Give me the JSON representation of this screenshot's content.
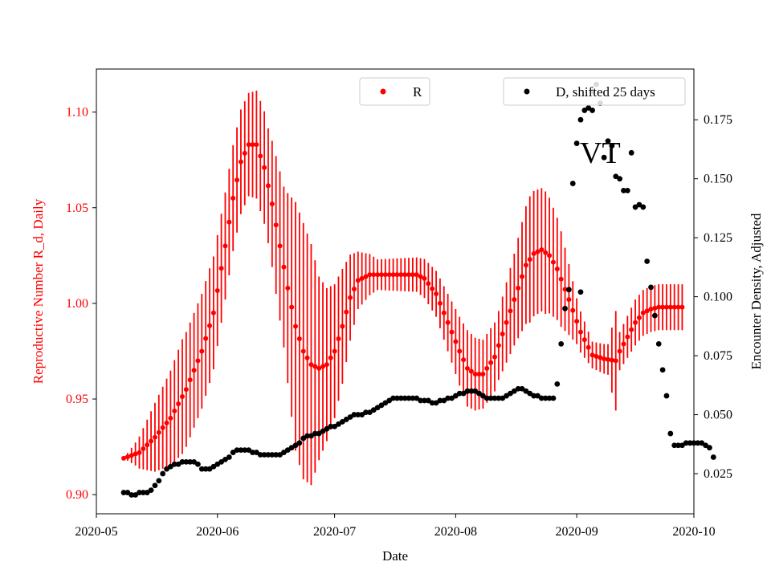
{
  "chart_data": {
    "type": "scatter",
    "xlabel": "Date",
    "ylabel_left": "Reproductive Number R_d, Daily",
    "ylabel_right": "Encounter Density, Adjusted",
    "annotation": "VT",
    "colors": {
      "r_series": "#ff0000",
      "d_series": "#000000"
    },
    "x_range": [
      "2020-05-01",
      "2020-10-01"
    ],
    "x_ticks": [
      "2020-05",
      "2020-06",
      "2020-07",
      "2020-08",
      "2020-09",
      "2020-10"
    ],
    "y_left_range": [
      0.89,
      1.1225
    ],
    "y_left_ticks": [
      "0.90",
      "0.95",
      "1.00",
      "1.05",
      "1.10"
    ],
    "y_right_range": [
      0.008,
      0.1965
    ],
    "y_right_ticks": [
      "0.025",
      "0.050",
      "0.075",
      "0.100",
      "0.125",
      "0.150",
      "0.175"
    ],
    "legend": [
      {
        "label": "R",
        "color": "#ff0000",
        "position": "top-center"
      },
      {
        "label": "D, shifted 25 days",
        "color": "#000000",
        "position": "top-right"
      }
    ],
    "r_start": "2020-05-08",
    "r_days": 144,
    "r_anchors": [
      [
        0,
        0.919
      ],
      [
        4,
        0.922
      ],
      [
        8,
        0.93
      ],
      [
        12,
        0.94
      ],
      [
        16,
        0.955
      ],
      [
        20,
        0.975
      ],
      [
        23,
        0.995
      ],
      [
        26,
        1.03
      ],
      [
        28,
        1.055
      ],
      [
        30,
        1.074
      ],
      [
        32,
        1.083
      ],
      [
        34,
        1.083
      ],
      [
        36,
        1.071
      ],
      [
        38,
        1.052
      ],
      [
        40,
        1.03
      ],
      [
        42,
        1.008
      ],
      [
        44,
        0.988
      ],
      [
        46,
        0.975
      ],
      [
        48,
        0.968
      ],
      [
        50,
        0.966
      ],
      [
        52,
        0.968
      ],
      [
        54,
        0.975
      ],
      [
        56,
        0.988
      ],
      [
        58,
        1.003
      ],
      [
        60,
        1.012
      ],
      [
        63,
        1.015
      ],
      [
        70,
        1.015
      ],
      [
        75,
        1.015
      ],
      [
        77,
        1.013
      ],
      [
        80,
        1.005
      ],
      [
        83,
        0.99
      ],
      [
        86,
        0.975
      ],
      [
        88,
        0.966
      ],
      [
        90,
        0.963
      ],
      [
        92,
        0.963
      ],
      [
        95,
        0.972
      ],
      [
        98,
        0.99
      ],
      [
        101,
        1.008
      ],
      [
        103,
        1.02
      ],
      [
        105,
        1.026
      ],
      [
        107,
        1.028
      ],
      [
        109,
        1.025
      ],
      [
        111,
        1.018
      ],
      [
        114,
        1.002
      ],
      [
        117,
        0.985
      ],
      [
        120,
        0.973
      ],
      [
        123,
        0.971
      ],
      [
        126,
        0.97
      ],
      [
        127,
        0.975
      ],
      [
        131,
        0.99
      ],
      [
        133,
        0.995
      ],
      [
        135,
        0.997
      ],
      [
        137,
        0.998
      ],
      [
        143,
        0.998
      ]
    ],
    "r_err_anchors": [
      [
        0,
        0.0
      ],
      [
        3,
        0.006
      ],
      [
        8,
        0.018
      ],
      [
        15,
        0.03
      ],
      [
        22,
        0.03
      ],
      [
        26,
        0.028
      ],
      [
        32,
        0.027
      ],
      [
        37,
        0.03
      ],
      [
        41,
        0.042
      ],
      [
        44,
        0.065
      ],
      [
        46,
        0.067
      ],
      [
        48,
        0.063
      ],
      [
        50,
        0.048
      ],
      [
        52,
        0.04
      ],
      [
        56,
        0.03
      ],
      [
        60,
        0.015
      ],
      [
        65,
        0.008
      ],
      [
        75,
        0.009
      ],
      [
        80,
        0.012
      ],
      [
        84,
        0.016
      ],
      [
        88,
        0.02
      ],
      [
        92,
        0.018
      ],
      [
        96,
        0.018
      ],
      [
        100,
        0.024
      ],
      [
        104,
        0.033
      ],
      [
        108,
        0.032
      ],
      [
        112,
        0.025
      ],
      [
        116,
        0.012
      ],
      [
        120,
        0.007
      ],
      [
        124,
        0.008
      ],
      [
        126,
        0.026
      ],
      [
        127,
        0.01
      ],
      [
        131,
        0.012
      ],
      [
        143,
        0.012
      ]
    ],
    "d_start": "2020-05-08",
    "d_series": [
      0.017,
      0.017,
      0.016,
      0.016,
      0.017,
      0.017,
      0.017,
      0.018,
      0.02,
      0.022,
      0.025,
      0.027,
      0.028,
      0.029,
      0.029,
      0.03,
      0.03,
      0.03,
      0.03,
      0.029,
      0.027,
      0.027,
      0.027,
      0.028,
      0.029,
      0.03,
      0.031,
      0.032,
      0.034,
      0.035,
      0.035,
      0.035,
      0.035,
      0.034,
      0.034,
      0.033,
      0.033,
      0.033,
      0.033,
      0.033,
      0.033,
      0.034,
      0.035,
      0.036,
      0.037,
      0.038,
      0.04,
      0.041,
      0.041,
      0.042,
      0.042,
      0.043,
      0.044,
      0.045,
      0.045,
      0.046,
      0.047,
      0.048,
      0.049,
      0.05,
      0.05,
      0.05,
      0.051,
      0.051,
      0.052,
      0.053,
      0.054,
      0.055,
      0.056,
      0.057,
      0.057,
      0.057,
      0.057,
      0.057,
      0.057,
      0.057,
      0.056,
      0.056,
      0.056,
      0.055,
      0.055,
      0.056,
      0.056,
      0.057,
      0.057,
      0.058,
      0.059,
      0.059,
      0.06,
      0.06,
      0.06,
      0.059,
      0.058,
      0.057,
      0.057,
      0.057,
      0.057,
      0.057,
      0.058,
      0.059,
      0.06,
      0.061,
      0.061,
      0.06,
      0.059,
      0.058,
      0.058,
      0.057,
      0.057,
      0.057,
      0.057,
      0.063,
      0.08,
      0.095,
      0.103,
      0.148,
      0.165,
      0.175,
      0.179,
      0.18,
      0.179,
      0.19,
      0.182,
      0.159,
      0.166,
      0.164,
      0.151,
      0.15,
      0.145,
      0.145,
      0.161,
      0.138,
      0.139,
      0.138,
      0.115,
      0.104,
      0.092,
      0.08,
      0.069,
      0.058,
      0.042,
      0.037,
      0.037,
      0.037,
      0.038,
      0.038,
      0.038,
      0.038,
      0.038,
      0.037,
      0.036,
      0.032
    ],
    "d_extra_points": [
      {
        "day": 120,
        "value": 0.187
      },
      {
        "day": 117,
        "value": 0.102
      }
    ]
  }
}
